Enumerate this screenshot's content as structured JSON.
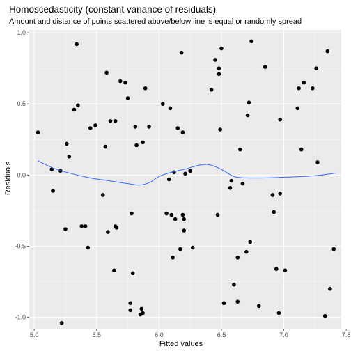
{
  "chart_data": {
    "type": "scatter",
    "title": "Homoscedasticity (constant variance of residuals)",
    "subtitle": "Amount and distance of points scattered above/below line is equal or randomly spread",
    "xlabel": "Fitted values",
    "ylabel": "Residuals",
    "xlim": [
      4.96,
      7.46
    ],
    "ylim": [
      -1.08,
      1.02
    ],
    "x_ticks": [
      5.0,
      5.5,
      6.0,
      6.5,
      7.0,
      7.5
    ],
    "x_tick_labels": [
      "5.0",
      "5.5",
      "6.0",
      "6.5",
      "7.0",
      "7.5"
    ],
    "y_ticks": [
      -1.0,
      -0.5,
      0.0,
      0.5,
      1.0
    ],
    "y_tick_labels": [
      "-1.0",
      "-0.5",
      "0.0",
      "0.5",
      "1.0"
    ],
    "grid": true,
    "colors": {
      "panel": "#ebebeb",
      "grid_major": "#ffffff",
      "grid_minor": "#f5f5f5",
      "points": "#000000",
      "smooth": "#3366ff"
    },
    "points": [
      [
        5.03,
        0.3
      ],
      [
        5.14,
        0.04
      ],
      [
        5.15,
        -0.11
      ],
      [
        5.21,
        0.03
      ],
      [
        5.22,
        -1.04
      ],
      [
        5.25,
        -0.38
      ],
      [
        5.26,
        0.22
      ],
      [
        5.28,
        0.13
      ],
      [
        5.32,
        0.46
      ],
      [
        5.34,
        0.92
      ],
      [
        5.35,
        0.49
      ],
      [
        5.38,
        -0.36
      ],
      [
        5.41,
        -0.36
      ],
      [
        5.43,
        -0.51
      ],
      [
        5.45,
        0.33
      ],
      [
        5.49,
        0.35
      ],
      [
        5.55,
        -0.14
      ],
      [
        5.57,
        0.2
      ],
      [
        5.58,
        0.72
      ],
      [
        5.59,
        -0.4
      ],
      [
        5.61,
        0.38
      ],
      [
        5.64,
        -0.67
      ],
      [
        5.65,
        0.38
      ],
      [
        5.65,
        -0.36
      ],
      [
        5.66,
        -0.37
      ],
      [
        5.69,
        0.66
      ],
      [
        5.73,
        0.65
      ],
      [
        5.75,
        0.54
      ],
      [
        5.77,
        -0.9
      ],
      [
        5.77,
        -0.95
      ],
      [
        5.78,
        -0.27
      ],
      [
        5.79,
        -0.69
      ],
      [
        5.81,
        0.34
      ],
      [
        5.82,
        0.21
      ],
      [
        5.85,
        -0.98
      ],
      [
        5.86,
        -0.94
      ],
      [
        5.87,
        0.23
      ],
      [
        5.87,
        -0.97
      ],
      [
        5.89,
        0.61
      ],
      [
        5.92,
        0.34
      ],
      [
        6.03,
        0.5
      ],
      [
        6.06,
        -0.27
      ],
      [
        6.08,
        -0.03
      ],
      [
        6.09,
        0.47
      ],
      [
        6.1,
        -0.28
      ],
      [
        6.11,
        -0.58
      ],
      [
        6.12,
        0.02
      ],
      [
        6.13,
        -0.31
      ],
      [
        6.15,
        0.33
      ],
      [
        6.17,
        -0.52
      ],
      [
        6.18,
        0.86
      ],
      [
        6.19,
        0.3
      ],
      [
        6.19,
        -0.28
      ],
      [
        6.2,
        -0.31
      ],
      [
        6.2,
        -0.39
      ],
      [
        6.21,
        0.01
      ],
      [
        6.25,
        0.03
      ],
      [
        6.27,
        -0.51
      ],
      [
        6.42,
        0.6
      ],
      [
        6.45,
        0.81
      ],
      [
        6.47,
        -0.28
      ],
      [
        6.48,
        0.71
      ],
      [
        6.48,
        0.75
      ],
      [
        6.49,
        0.32
      ],
      [
        6.5,
        0.89
      ],
      [
        6.52,
        -0.9
      ],
      [
        6.57,
        -0.09
      ],
      [
        6.58,
        -0.04
      ],
      [
        6.6,
        -0.77
      ],
      [
        6.63,
        -0.89
      ],
      [
        6.63,
        -0.58
      ],
      [
        6.65,
        0.18
      ],
      [
        6.67,
        -0.06
      ],
      [
        6.7,
        -0.54
      ],
      [
        6.71,
        0.42
      ],
      [
        6.72,
        0.51
      ],
      [
        6.73,
        -0.47
      ],
      [
        6.74,
        0.94
      ],
      [
        6.8,
        -0.92
      ],
      [
        6.85,
        0.76
      ],
      [
        6.91,
        -0.14
      ],
      [
        6.92,
        -0.26
      ],
      [
        6.94,
        -0.66
      ],
      [
        6.96,
        -0.97
      ],
      [
        6.97,
        -0.13
      ],
      [
        6.97,
        0.39
      ],
      [
        7.01,
        -0.67
      ],
      [
        7.11,
        0.47
      ],
      [
        7.12,
        0.61
      ],
      [
        7.14,
        0.18
      ],
      [
        7.16,
        0.65
      ],
      [
        7.23,
        0.61
      ],
      [
        7.26,
        0.75
      ],
      [
        7.27,
        0.09
      ],
      [
        7.33,
        -0.99
      ],
      [
        7.35,
        0.87
      ],
      [
        7.37,
        -0.8
      ],
      [
        7.4,
        -0.52
      ]
    ],
    "smooth_line": [
      [
        5.03,
        0.1
      ],
      [
        5.15,
        0.05
      ],
      [
        5.3,
        0.01
      ],
      [
        5.45,
        -0.02
      ],
      [
        5.6,
        -0.04
      ],
      [
        5.75,
        -0.06
      ],
      [
        5.85,
        -0.07
      ],
      [
        5.93,
        -0.05
      ],
      [
        6.0,
        -0.01
      ],
      [
        6.1,
        0.02
      ],
      [
        6.2,
        0.04
      ],
      [
        6.3,
        0.065
      ],
      [
        6.38,
        0.075
      ],
      [
        6.45,
        0.06
      ],
      [
        6.52,
        0.03
      ],
      [
        6.6,
        -0.01
      ],
      [
        6.7,
        -0.02
      ],
      [
        6.85,
        -0.02
      ],
      [
        7.0,
        -0.015
      ],
      [
        7.15,
        -0.01
      ],
      [
        7.3,
        0.0
      ],
      [
        7.42,
        0.015
      ]
    ]
  }
}
